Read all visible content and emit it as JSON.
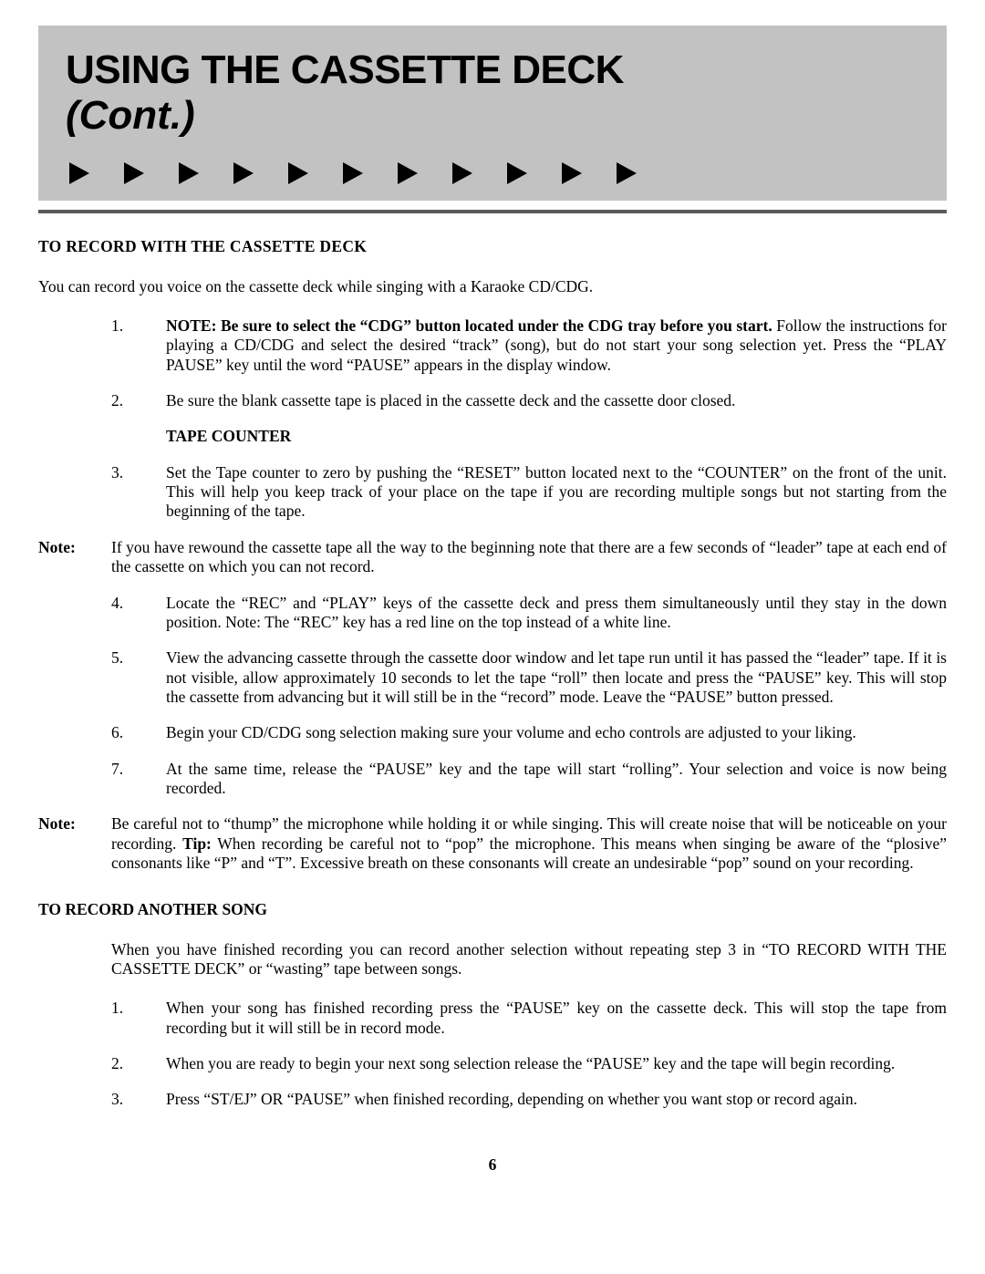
{
  "header": {
    "title": "USING THE CASSETTE DECK",
    "subtitle": "(Cont.)",
    "arrow_count": 11
  },
  "section1": {
    "title": "TO RECORD WITH THE CASSETTE DECK",
    "intro": "You can record you voice on the cassette deck while singing with a Karaoke CD/CDG.",
    "items": [
      {
        "num": "1.",
        "bold_lead": "NOTE: Be sure to select the “CDG” button located under the CDG tray before you start.",
        "rest": " Follow the instructions for  playing a CD/CDG and select the desired “track” (song), but do not start your song selection yet. Press the “PLAY PAUSE” key until the word “PAUSE” appears in the display window."
      },
      {
        "num": "2.",
        "text": "Be sure the blank cassette tape is placed in the cassette deck and the cassette door closed."
      }
    ],
    "tape_counter_heading": "TAPE COUNTER",
    "item3": {
      "num": "3.",
      "text": "Set the Tape counter to zero by pushing the “RESET” button located next to the “COUNTER” on the front of the unit. This will help you keep track of your place on the tape if you are recording multiple songs but not starting from the beginning of the tape."
    },
    "note1": {
      "label": "Note:",
      "text": "If you have rewound the cassette tape all the way to the beginning note that there are a few seconds of “leader” tape at each end of the cassette on which you can not record."
    },
    "items2": [
      {
        "num": "4.",
        "text": "Locate the “REC” and “PLAY” keys of the cassette deck and press them simultaneously until they stay in the down position. Note: The “REC” key has a red line on the top instead of a white line."
      },
      {
        "num": "5.",
        "text": "View the advancing cassette through the cassette door window and let tape run until it has passed the “leader” tape. If it is not visible, allow approximately 10 seconds to let the tape “roll” then locate and press the “PAUSE” key. This will stop the cassette from advancing but it will still be in the “record” mode. Leave the “PAUSE” button pressed."
      },
      {
        "num": "6.",
        "text": "Begin your CD/CDG song selection making sure your volume and echo controls are adjusted to your liking."
      },
      {
        "num": "7.",
        "text": "At the same time, release the “PAUSE” key and the tape will start “rolling”. Your selection and voice is now being recorded."
      }
    ],
    "note2": {
      "label": "Note:",
      "pre": "Be careful not to “thump” the microphone while holding it or while singing. This will create noise that will be noticeable on your recording.  ",
      "tip_label": "Tip:",
      "post": "  When recording be careful not to “pop” the microphone. This means when singing be aware of the “plosive” consonants like “P” and “T”. Excessive breath on these consonants will create an undesirable “pop” sound on your recording."
    }
  },
  "section2": {
    "title": "TO RECORD ANOTHER SONG",
    "intro": "When you have finished recording you can record another selection without repeating step 3 in “TO RECORD WITH THE CASSETTE DECK” or “wasting” tape between songs.",
    "items": [
      {
        "num": "1.",
        "text": "When your song has finished recording press the “PAUSE” key on the cassette deck. This will stop the tape from recording but it will still be in record mode."
      },
      {
        "num": "2.",
        "text": "When you are ready to begin your next song selection release the “PAUSE” key and the tape will begin recording."
      },
      {
        "num": "3.",
        "text": "Press “ST/EJ” OR “PAUSE” when finished recording, depending on whether you want stop or record again."
      }
    ]
  },
  "page_number": "6"
}
